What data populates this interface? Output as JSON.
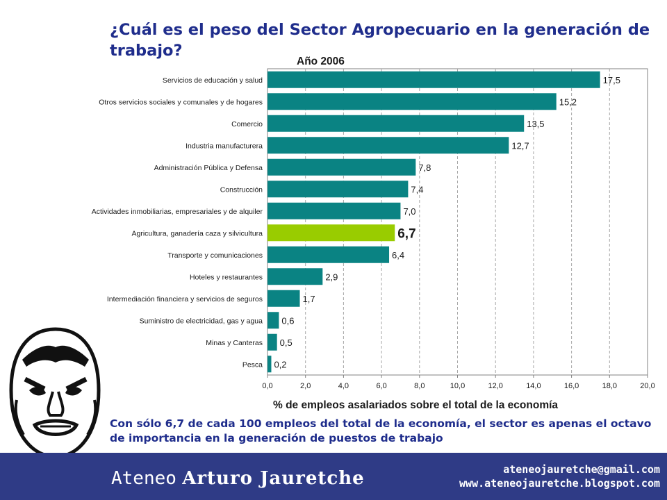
{
  "title": "¿Cuál es el peso del Sector Agropecuario en la generación de trabajo?",
  "caption": "Con sólo 6,7 de cada 100 empleos del total de la economía, el sector es apenas el octavo de importancia en la generación de puestos de trabajo",
  "colors": {
    "title_text": "#1f2d8c",
    "bar": "#0a8383",
    "highlight_bar": "#99cc00",
    "footer": "#2f3b86"
  },
  "footer": {
    "brand_prefix": "Ateneo",
    "brand_name": "Arturo Jauretche",
    "email": "ateneojauretche@gmail.com",
    "website": "www.ateneojauretche.blogspot.com"
  },
  "chart_data": {
    "type": "bar",
    "orientation": "horizontal",
    "title": "Año 2006",
    "xlabel": "% de empleos asalariados sobre el total de la economía",
    "ylabel": "",
    "xlim": [
      0,
      20
    ],
    "xticks": [
      "0,0",
      "2,0",
      "4,0",
      "6,0",
      "8,0",
      "10,0",
      "12,0",
      "14,0",
      "16,0",
      "18,0",
      "20,0"
    ],
    "grid": "vertical dashed",
    "categories": [
      "Servicios de educación y salud",
      "Otros servicios sociales y comunales y de hogares",
      "Comercio",
      "Industria manufacturera",
      "Administración Pública y Defensa",
      "Construcción",
      "Actividades inmobiliarias, empresariales y de alquiler",
      "Agricultura, ganadería caza y silvicultura",
      "Transporte y comunicaciones",
      "Hoteles y restaurantes",
      "Intermediación financiera y servicios de seguros",
      "Suministro de electricidad, gas y agua",
      "Minas y Canteras",
      "Pesca"
    ],
    "values": [
      17.5,
      15.2,
      13.5,
      12.7,
      7.8,
      7.4,
      7.0,
      6.7,
      6.4,
      2.9,
      1.7,
      0.6,
      0.5,
      0.2
    ],
    "value_labels": [
      "17,5",
      "15,2",
      "13,5",
      "12,7",
      "7,8",
      "7,4",
      "7,0",
      "6,7",
      "6,4",
      "2,9",
      "1,7",
      "0,6",
      "0,5",
      "0,2"
    ],
    "highlight": "Agricultura, ganadería caza y silvicultura"
  }
}
